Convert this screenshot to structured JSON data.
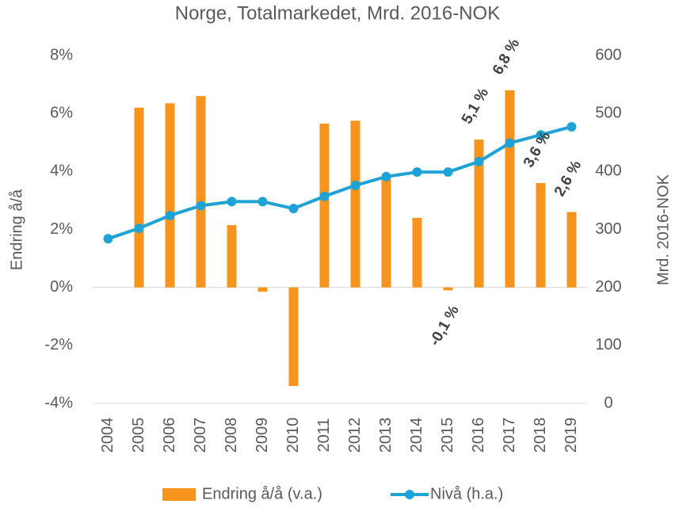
{
  "chart_data": {
    "type": "bar_line",
    "title": "Norge, Totalmarkedet,  Mrd. 2016-NOK",
    "y_label": "Endring å/å",
    "y2_label": "Mrd. 2016-NOK",
    "categories": [
      "2004",
      "2005",
      "2006",
      "2007",
      "2008",
      "2009",
      "2010",
      "2011",
      "2012",
      "2013",
      "2014",
      "2015",
      "2016",
      "2017",
      "2018",
      "2019"
    ],
    "ylim": [
      -4,
      8
    ],
    "yticks": [
      {
        "value": -4,
        "label": "-4%"
      },
      {
        "value": -2,
        "label": "-2%"
      },
      {
        "value": 0,
        "label": "0%"
      },
      {
        "value": 2,
        "label": "2%"
      },
      {
        "value": 4,
        "label": "4%"
      },
      {
        "value": 6,
        "label": "6%"
      },
      {
        "value": 8,
        "label": "8%"
      }
    ],
    "y2lim": [
      0,
      600
    ],
    "y2ticks": [
      0,
      100,
      200,
      300,
      400,
      500,
      600
    ],
    "series": [
      {
        "name": "Endring å/å (v.a.)",
        "type": "bar",
        "color": "#f7941d",
        "values": [
          null,
          6.2,
          6.35,
          6.6,
          2.15,
          -0.15,
          -3.4,
          5.65,
          5.75,
          3.75,
          2.4,
          -0.1,
          5.1,
          6.8,
          3.6,
          2.6
        ],
        "value_labels": [
          null,
          null,
          null,
          null,
          null,
          null,
          null,
          null,
          null,
          null,
          null,
          "-0,1 %",
          "5,1 %",
          "6,8 %",
          "3,6 %",
          "2,6 %"
        ]
      },
      {
        "name": "Nivå (h.a.)",
        "type": "line",
        "axis": "y2",
        "color": "#1fa3d6",
        "values": [
          284,
          302,
          324,
          341,
          348,
          348,
          336,
          357,
          376,
          391,
          399,
          399,
          417,
          449,
          463,
          477
        ]
      }
    ]
  }
}
